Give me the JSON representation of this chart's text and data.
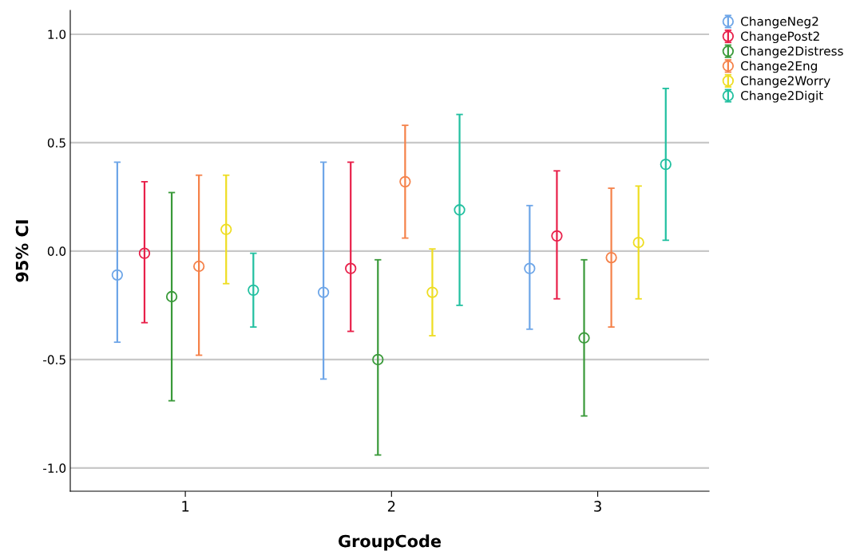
{
  "chart_data": {
    "type": "scatter",
    "xlabel": "GroupCode",
    "ylabel": "95% CI",
    "categories": [
      "1",
      "2",
      "3"
    ],
    "ylim": [
      -1.107,
      1.11
    ],
    "yticks": [
      {
        "value": -1.0,
        "label": "-1.0"
      },
      {
        "value": -0.5,
        "label": "-0.5"
      },
      {
        "value": 0.0,
        "label": "0.0"
      },
      {
        "value": 0.5,
        "label": "0.5"
      },
      {
        "value": 1.0,
        "label": "1.0"
      }
    ],
    "grid": "y",
    "legend": "top right",
    "marker": "circle",
    "series": [
      {
        "name": "ChangeNeg2",
        "color": "#6ea6e8",
        "values": [
          -0.11,
          -0.19,
          -0.08
        ],
        "errors": [
          [
            -0.42,
            0.41
          ],
          [
            -0.59,
            0.41
          ],
          [
            -0.36,
            0.21
          ]
        ]
      },
      {
        "name": "ChangePost2",
        "color": "#e8204a",
        "values": [
          -0.01,
          -0.08,
          0.07
        ],
        "errors": [
          [
            -0.33,
            0.32
          ],
          [
            -0.37,
            0.41
          ],
          [
            -0.22,
            0.37
          ]
        ]
      },
      {
        "name": "Change2Distress",
        "color": "#3a9a3a",
        "values": [
          -0.21,
          -0.5,
          -0.4
        ],
        "errors": [
          [
            -0.69,
            0.27
          ],
          [
            -0.94,
            -0.04
          ],
          [
            -0.76,
            -0.04
          ]
        ]
      },
      {
        "name": "Change2Eng",
        "color": "#f5824a",
        "values": [
          -0.07,
          0.32,
          -0.03
        ],
        "errors": [
          [
            -0.48,
            0.35
          ],
          [
            0.06,
            0.58
          ],
          [
            -0.35,
            0.29
          ]
        ]
      },
      {
        "name": "Change2Worry",
        "color": "#eedd22",
        "values": [
          0.1,
          -0.19,
          0.04
        ],
        "errors": [
          [
            -0.15,
            0.35
          ],
          [
            -0.39,
            0.01
          ],
          [
            -0.22,
            0.3
          ]
        ]
      },
      {
        "name": "Change2Digit",
        "color": "#22c0a0",
        "values": [
          -0.18,
          0.19,
          0.4
        ],
        "errors": [
          [
            -0.35,
            -0.01
          ],
          [
            -0.25,
            0.63
          ],
          [
            0.05,
            0.75
          ]
        ]
      }
    ]
  }
}
